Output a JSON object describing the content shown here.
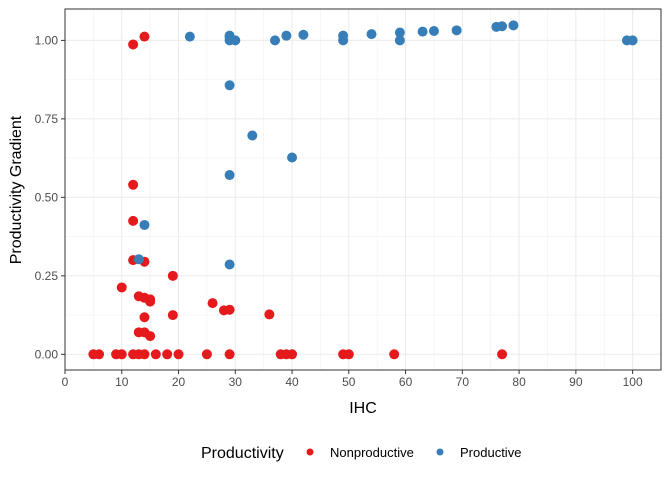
{
  "chart_data": {
    "type": "scatter",
    "xlabel": "IHC",
    "ylabel": "Productivity Gradient",
    "xlim": [
      0,
      105
    ],
    "ylim": [
      -0.05,
      1.1
    ],
    "x_ticks": [
      0,
      10,
      20,
      30,
      40,
      50,
      60,
      70,
      80,
      90,
      100
    ],
    "x_ticks_labels": [
      "0",
      "10",
      "20",
      "30",
      "40",
      "50",
      "60",
      "70",
      "80",
      "90",
      "100"
    ],
    "y_ticks": [
      0,
      0.25,
      0.5,
      0.75,
      1.0
    ],
    "y_ticks_labels": [
      "0.00",
      "0.25",
      "0.50",
      "0.75",
      "1.00"
    ],
    "grid": true,
    "legend": {
      "title": "Productivity",
      "position": "bottom"
    },
    "series": [
      {
        "name": "Nonproductive",
        "color": "#e41a1c",
        "points": [
          [
            5,
            0
          ],
          [
            6,
            0
          ],
          [
            9,
            0
          ],
          [
            10,
            0
          ],
          [
            12,
            0
          ],
          [
            13,
            0
          ],
          [
            14,
            0
          ],
          [
            16,
            0
          ],
          [
            18,
            0
          ],
          [
            20,
            0
          ],
          [
            25,
            0
          ],
          [
            29,
            0
          ],
          [
            38,
            0
          ],
          [
            39,
            0
          ],
          [
            40,
            0
          ],
          [
            49,
            0
          ],
          [
            50,
            0
          ],
          [
            58,
            0
          ],
          [
            77,
            0
          ],
          [
            10,
            0.213
          ],
          [
            12,
            0.987
          ],
          [
            14,
            1.012
          ],
          [
            12,
            0.54
          ],
          [
            12,
            0.425
          ],
          [
            12,
            0.3
          ],
          [
            13,
            0.185
          ],
          [
            14,
            0.18
          ],
          [
            14,
            0.295
          ],
          [
            15,
            0.175
          ],
          [
            15,
            0.168
          ],
          [
            19,
            0.25
          ],
          [
            13,
            0.07
          ],
          [
            14,
            0.07
          ],
          [
            15,
            0.058
          ],
          [
            14,
            0.118
          ],
          [
            19,
            0.125
          ],
          [
            26,
            0.163
          ],
          [
            28,
            0.14
          ],
          [
            29,
            0.142
          ],
          [
            36,
            0.127
          ]
        ]
      },
      {
        "name": "Productive",
        "color": "#377eb8",
        "points": [
          [
            22,
            1.012
          ],
          [
            29,
            1.015
          ],
          [
            29,
            1.0
          ],
          [
            30,
            1.0
          ],
          [
            29,
            1.01
          ],
          [
            37,
            1.0
          ],
          [
            39,
            1.015
          ],
          [
            42,
            1.018
          ],
          [
            49,
            1.0
          ],
          [
            49,
            1.015
          ],
          [
            54,
            1.02
          ],
          [
            59,
            1.0
          ],
          [
            59,
            1.025
          ],
          [
            63,
            1.028
          ],
          [
            65,
            1.03
          ],
          [
            69,
            1.032
          ],
          [
            76,
            1.043
          ],
          [
            77,
            1.045
          ],
          [
            79,
            1.048
          ],
          [
            99,
            1.0
          ],
          [
            100,
            1.0
          ],
          [
            29,
            0.857
          ],
          [
            33,
            0.697
          ],
          [
            40,
            0.627
          ],
          [
            29,
            0.571
          ],
          [
            14,
            0.412
          ],
          [
            13,
            0.303
          ],
          [
            29,
            0.286
          ]
        ]
      }
    ]
  }
}
